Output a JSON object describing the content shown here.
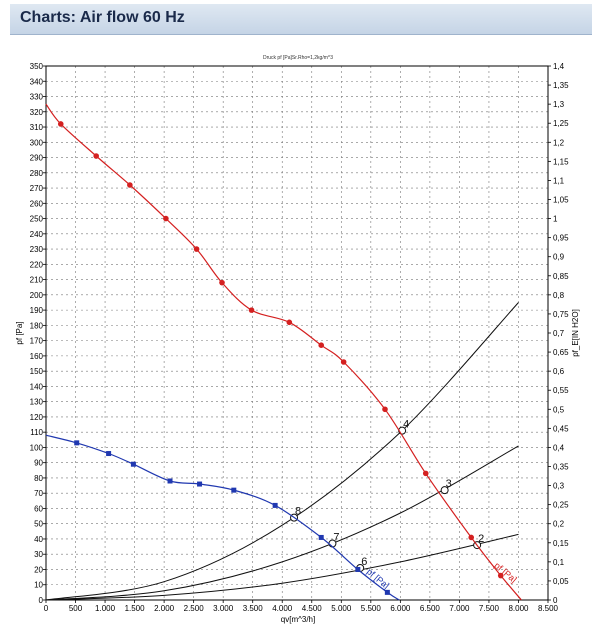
{
  "page": {
    "title": "Charts: Air flow 60 Hz"
  },
  "chart_data": {
    "type": "line",
    "subtitle": "Druck pf [Pa]Sr.Rho=1,2kg/m^3",
    "xlabel": "qv[m^3/h]",
    "ylabel": "pf [Pa]",
    "y2label": "pf_E[IN H2O]",
    "xlim": [
      0,
      8500
    ],
    "ylim": [
      0,
      350
    ],
    "y2lim": [
      0,
      1.4
    ],
    "xticks": [
      0,
      500,
      1000,
      1500,
      2000,
      2500,
      3000,
      3500,
      4000,
      4500,
      5000,
      5500,
      6000,
      6500,
      7000,
      7500,
      8000,
      8500
    ],
    "xtick_labels": [
      "0",
      "500",
      "1.000",
      "1.500",
      "2.000",
      "2.500",
      "3.000",
      "3.500",
      "4.000",
      "4.500",
      "5.000",
      "5.500",
      "6.000",
      "6.500",
      "7.000",
      "7.500",
      "8.000",
      "8.500"
    ],
    "yticks_step": 10,
    "y2ticks_step": 0.05,
    "grid": true,
    "series": [
      {
        "name": "pf [Pa]",
        "color": "#d42020",
        "marker": "circle",
        "points": [
          [
            0,
            325
          ],
          [
            250,
            312
          ],
          [
            850,
            291
          ],
          [
            1420,
            272
          ],
          [
            2030,
            250
          ],
          [
            2550,
            230
          ],
          [
            2980,
            208
          ],
          [
            3480,
            190
          ],
          [
            4120,
            182
          ],
          [
            4660,
            167
          ],
          [
            5040,
            156
          ],
          [
            5740,
            125
          ],
          [
            6430,
            83
          ],
          [
            7200,
            41
          ],
          [
            7700,
            16
          ],
          [
            8050,
            0
          ]
        ]
      },
      {
        "name": "pf [Pa]",
        "color": "#2038b0",
        "marker": "square",
        "points": [
          [
            0,
            108
          ],
          [
            520,
            103
          ],
          [
            1060,
            96
          ],
          [
            1480,
            89
          ],
          [
            2100,
            78
          ],
          [
            2600,
            76
          ],
          [
            3180,
            72
          ],
          [
            3880,
            62
          ],
          [
            4660,
            41
          ],
          [
            5280,
            20
          ],
          [
            5780,
            5
          ],
          [
            5980,
            0
          ]
        ]
      }
    ],
    "system_curves": [
      {
        "points": [
          [
            0,
            0
          ],
          [
            2000,
            12
          ],
          [
            4000,
            49
          ],
          [
            6000,
            110
          ],
          [
            8000,
            195
          ]
        ],
        "labels": [
          {
            "text": "8",
            "x": 4200,
            "y": 54
          },
          {
            "text": "4",
            "x": 6030,
            "y": 111
          }
        ]
      },
      {
        "points": [
          [
            0,
            0
          ],
          [
            2000,
            6
          ],
          [
            4000,
            25
          ],
          [
            6000,
            57
          ],
          [
            8000,
            101
          ]
        ],
        "labels": [
          {
            "text": "7",
            "x": 4850,
            "y": 37
          },
          {
            "text": "3",
            "x": 6750,
            "y": 72
          }
        ]
      },
      {
        "points": [
          [
            0,
            0
          ],
          [
            2000,
            3
          ],
          [
            4000,
            11
          ],
          [
            6000,
            25
          ],
          [
            8000,
            43
          ]
        ],
        "labels": [
          {
            "text": "6",
            "x": 5320,
            "y": 21
          },
          {
            "text": "2",
            "x": 7300,
            "y": 36
          }
        ]
      }
    ],
    "series_labels": [
      {
        "text": "pf [Pa]",
        "x": 5420,
        "y": 18,
        "color": "#2038b0"
      },
      {
        "text": "pf [Pa]",
        "x": 7580,
        "y": 22,
        "color": "#d42020"
      }
    ]
  }
}
